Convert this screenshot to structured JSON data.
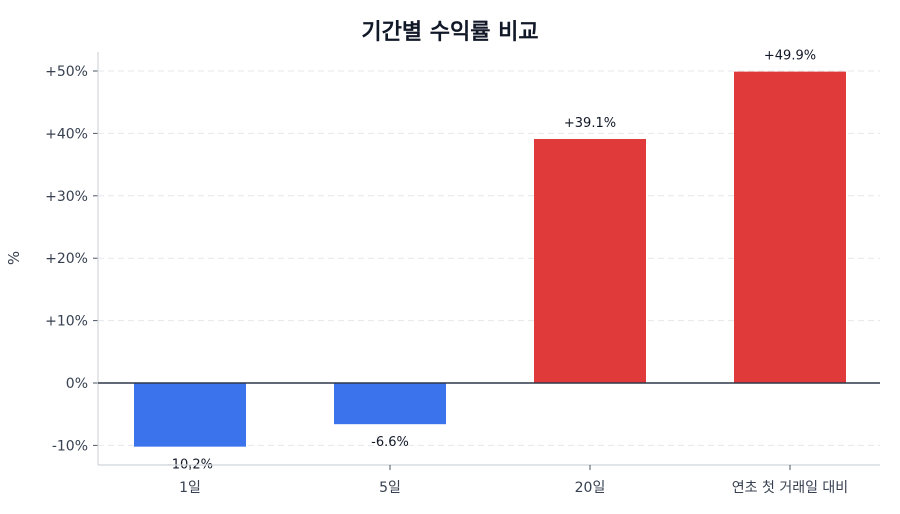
{
  "chart_data": {
    "type": "bar",
    "title": "기간별 수익률 비교",
    "xlabel": "",
    "ylabel": "%",
    "categories": [
      "1일",
      "5일",
      "20일",
      "연초 첫 거래일 대비"
    ],
    "values": [
      -10.2,
      -6.6,
      39.1,
      49.9
    ],
    "value_labels": [
      "-10.2%",
      "-6.6%",
      "+39.1%",
      "+49.9%"
    ],
    "ylim": [
      -13,
      53
    ],
    "yticks": [
      -10,
      0,
      10,
      20,
      30,
      40,
      50
    ],
    "ytick_labels": [
      "-10%",
      "0%",
      "+10%",
      "+20%",
      "+30%",
      "+40%",
      "+50%"
    ],
    "grid": "horizontal dashed",
    "legend": null,
    "colors": {
      "negative": "#3b73ed",
      "positive": "#e03a3a",
      "zero_line": "#2d3748",
      "grid": "#e5e7eb",
      "axis": "#d1d5db"
    }
  }
}
